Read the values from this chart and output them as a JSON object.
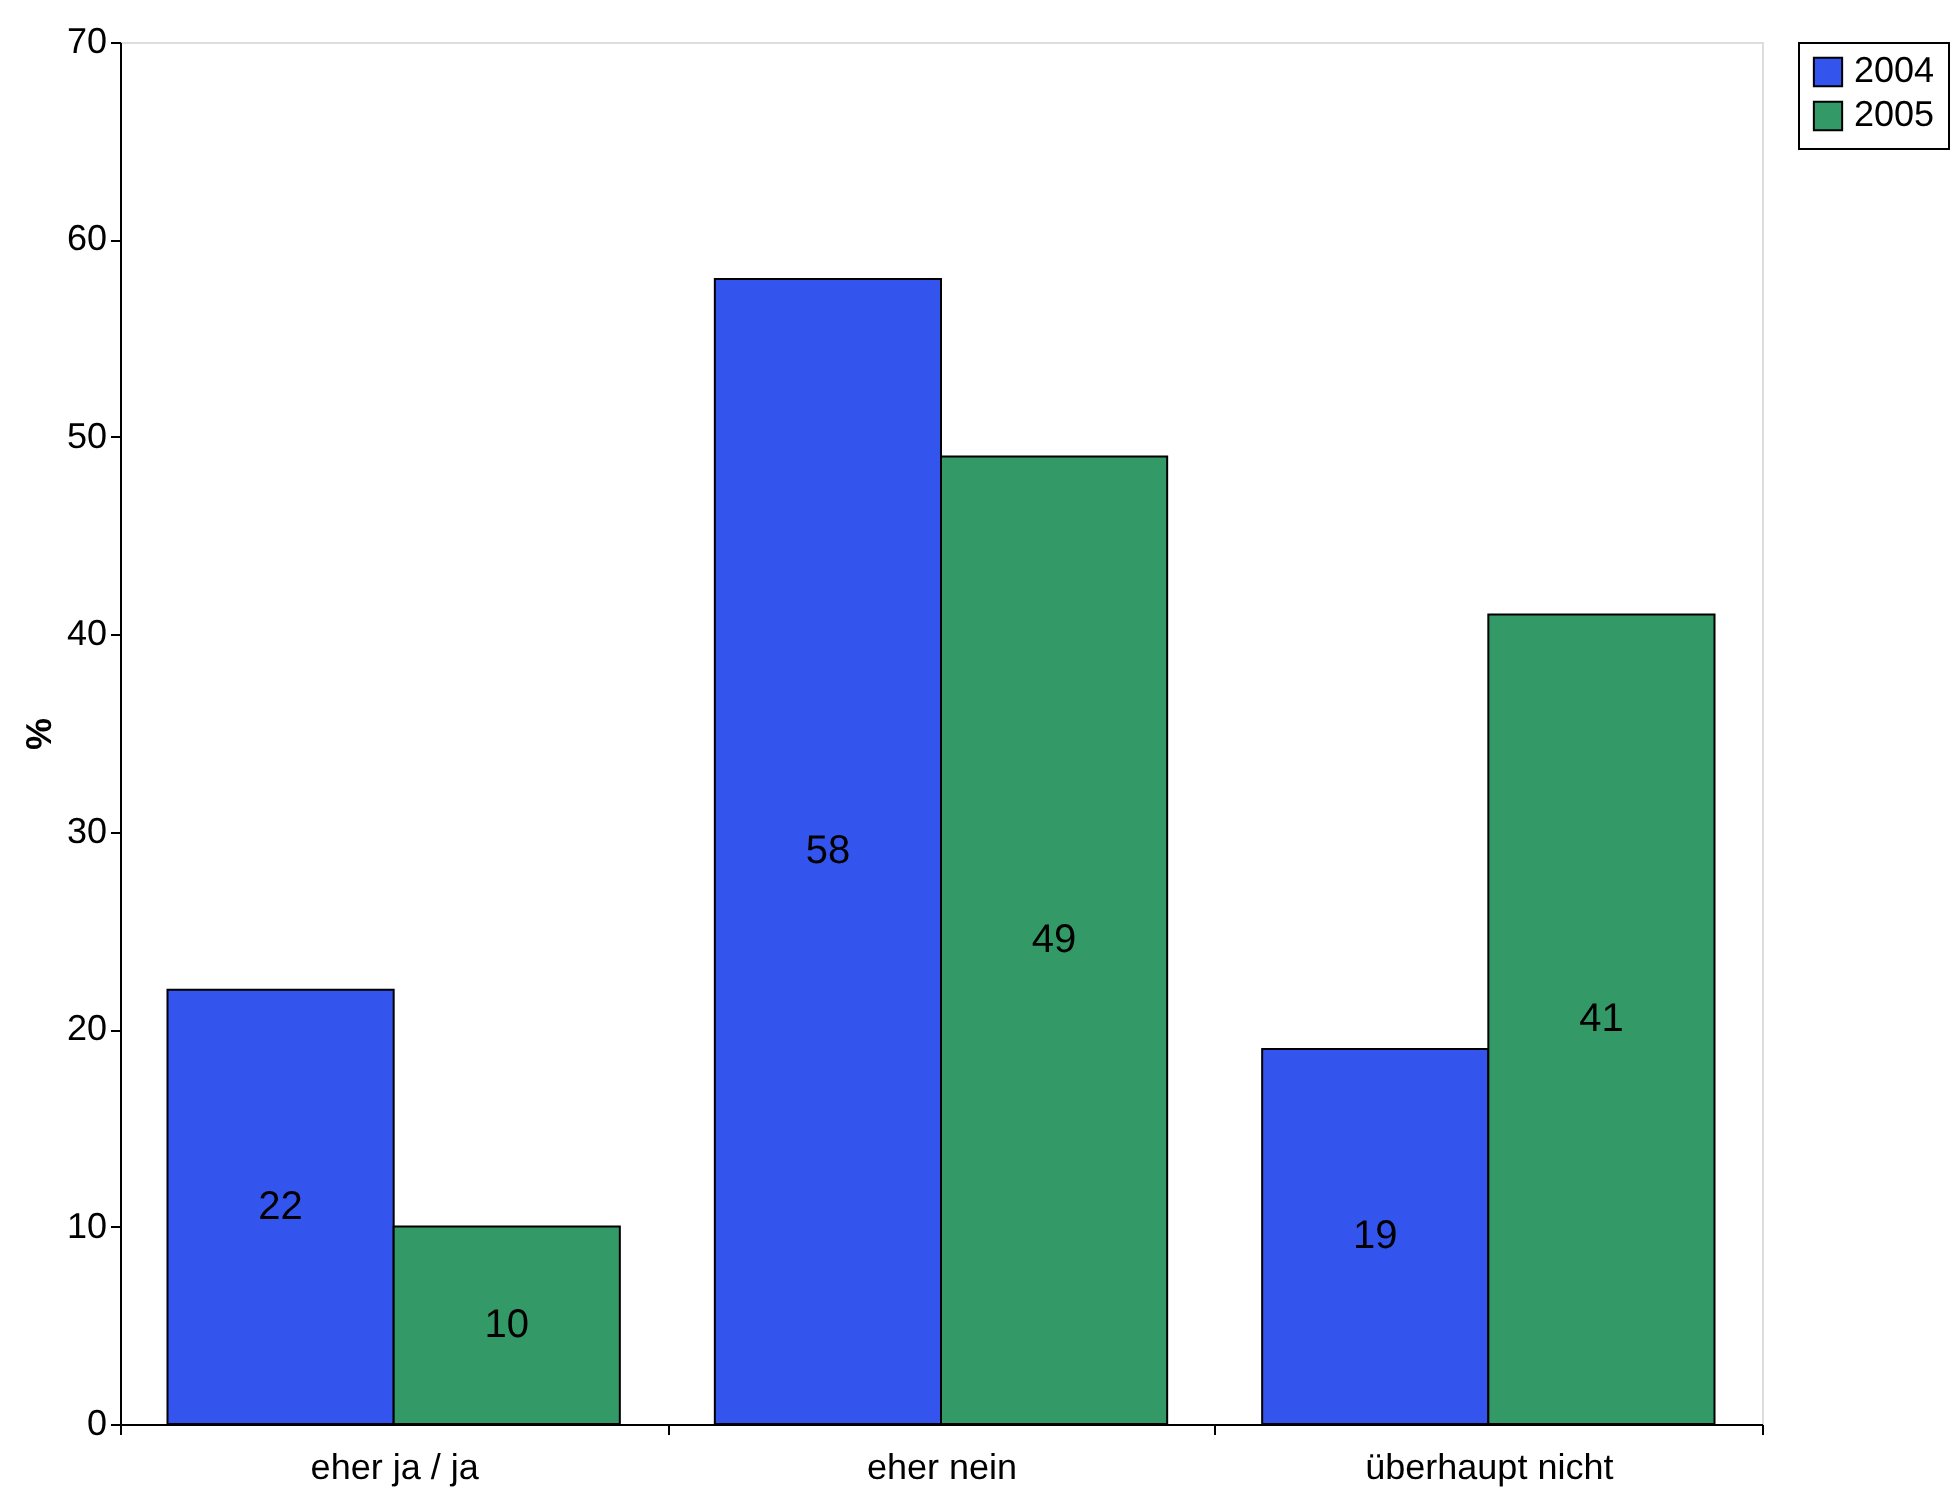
{
  "chart_data": {
    "type": "bar",
    "ylabel": "%",
    "categories": [
      "eher ja / ja",
      "eher nein",
      "überhaupt nicht"
    ],
    "series": [
      {
        "name": "2004",
        "color": "#3355ee",
        "values": [
          22,
          58,
          19
        ]
      },
      {
        "name": "2005",
        "color": "#339966",
        "values": [
          10,
          49,
          41
        ]
      }
    ],
    "ylim": [
      0,
      70
    ],
    "yticks": [
      0,
      10,
      20,
      30,
      40,
      50,
      60,
      70
    ],
    "grid": false,
    "legend": "right",
    "data_labels": true
  }
}
